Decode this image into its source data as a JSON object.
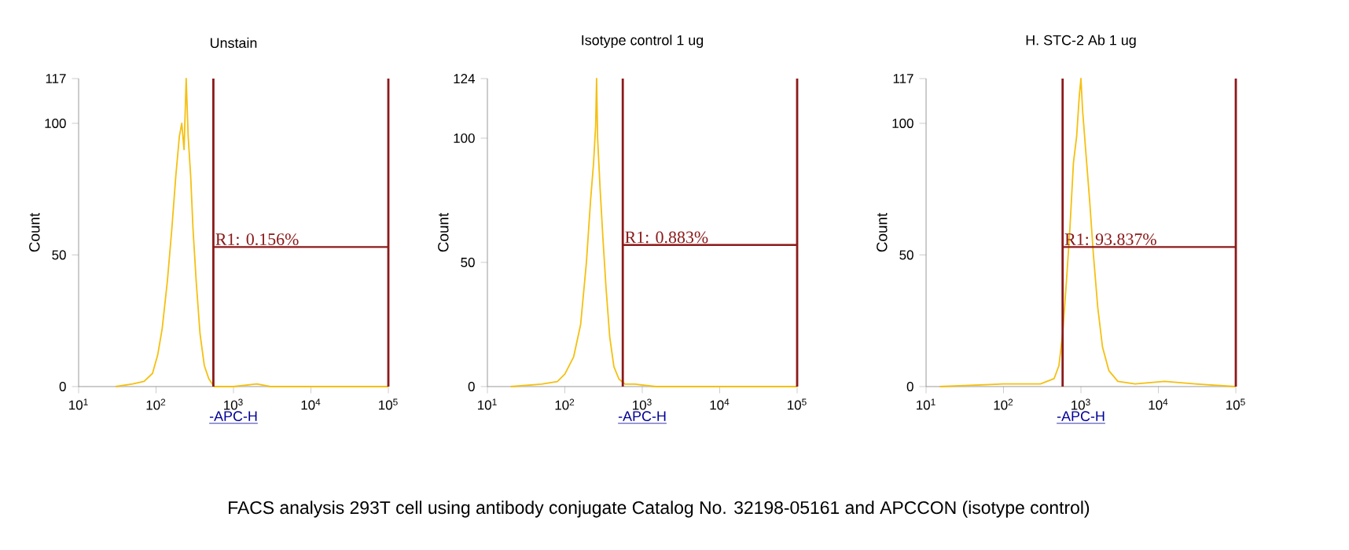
{
  "chart_data": [
    {
      "type": "line",
      "title": "Unstain",
      "xlabel": "-APC-H",
      "ylabel": "Count",
      "log": "x",
      "color": "#f5c010",
      "marker": "none",
      "grid": false,
      "x": [
        30,
        50,
        70,
        90,
        105,
        120,
        140,
        160,
        180,
        200,
        215,
        230,
        245,
        260,
        280,
        300,
        330,
        370,
        420,
        480,
        560,
        700,
        1000,
        2000,
        3000,
        10000,
        100000
      ],
      "values": [
        0,
        1,
        2,
        5,
        12,
        22,
        40,
        60,
        80,
        95,
        100,
        90,
        117,
        95,
        80,
        60,
        40,
        20,
        8,
        3,
        0,
        0,
        0,
        1,
        0,
        0,
        0
      ],
      "xlim": [
        10,
        100000
      ],
      "ylim": [
        0,
        117
      ],
      "xticks": [
        {
          "value": 10,
          "label": "10$^{1}$"
        },
        {
          "value": 100,
          "label": "10$^{2}$"
        },
        {
          "value": 1000,
          "label": "10$^{3}$"
        },
        {
          "value": 10000,
          "label": "10$^{4}$"
        },
        {
          "value": 100000,
          "label": "10$^{5}$"
        }
      ],
      "yticks": [
        0,
        50,
        100,
        117
      ],
      "ref_lines": [
        {
          "axis": "x",
          "value": 550,
          "color": "#8b1a1a"
        },
        {
          "axis": "x",
          "value": 100000,
          "color": "#8b1a1a"
        },
        {
          "axis": "y",
          "value": 53,
          "color": "#8b1a1a"
        }
      ],
      "annotations": [
        {
          "text": "R1: 0.156%",
          "x": 550,
          "y": 53
        },
        "FACS analysis 293T cell using antibody conjugate Catalog No. 32198-05161 and APCCON (isotype control)"
      ]
    },
    {
      "type": "line",
      "title": "Isotype control 1 ug",
      "xlabel": "-APC-H",
      "ylabel": "Count",
      "log": "x",
      "color": "#f5c010",
      "marker": "none",
      "grid": false,
      "x": [
        20,
        50,
        80,
        100,
        130,
        160,
        190,
        215,
        235,
        250,
        257,
        265,
        285,
        310,
        340,
        380,
        430,
        500,
        600,
        800,
        1500,
        3000,
        100000
      ],
      "values": [
        0,
        1,
        2,
        5,
        12,
        25,
        50,
        75,
        90,
        105,
        124,
        100,
        80,
        60,
        40,
        20,
        8,
        3,
        1,
        1,
        0,
        0,
        0
      ],
      "xlim": [
        10,
        100000
      ],
      "ylim": [
        0,
        124
      ],
      "xticks": [
        {
          "value": 10,
          "label": "10$^{1}$"
        },
        {
          "value": 100,
          "label": "10$^{2}$"
        },
        {
          "value": 1000,
          "label": "10$^{3}$"
        },
        {
          "value": 10000,
          "label": "10$^{4}$"
        },
        {
          "value": 100000,
          "label": "10$^{5}$"
        }
      ],
      "yticks": [
        0,
        50,
        100,
        124
      ],
      "ref_lines": [
        {
          "axis": "x",
          "value": 560,
          "color": "#8b1a1a"
        },
        {
          "axis": "x",
          "value": 100000,
          "color": "#8b1a1a"
        },
        {
          "axis": "y",
          "value": 57,
          "color": "#8b1a1a"
        }
      ],
      "annotations": [
        {
          "text": "R1: 0.883%",
          "x": 560,
          "y": 57
        }
      ]
    },
    {
      "type": "line",
      "title": "H. STC-2 Ab 1 ug",
      "xlabel": "-APC-H",
      "ylabel": "Count",
      "log": "x",
      "color": "#f5c010",
      "marker": "none",
      "grid": false,
      "x": [
        15,
        100,
        300,
        450,
        520,
        580,
        650,
        720,
        800,
        880,
        950,
        1000,
        1050,
        1150,
        1300,
        1450,
        1650,
        1900,
        2300,
        3000,
        5000,
        12000,
        30000,
        100000
      ],
      "values": [
        0,
        1,
        1,
        3,
        8,
        20,
        40,
        60,
        85,
        95,
        110,
        117,
        105,
        90,
        70,
        50,
        30,
        15,
        6,
        2,
        1,
        2,
        1,
        0
      ],
      "xlim": [
        10,
        100000
      ],
      "ylim": [
        0,
        117
      ],
      "xticks": [
        {
          "value": 10,
          "label": "10$^{1}$"
        },
        {
          "value": 100,
          "label": "10$^{2}$"
        },
        {
          "value": 1000,
          "label": "10$^{3}$"
        },
        {
          "value": 10000,
          "label": "10$^{4}$"
        },
        {
          "value": 100000,
          "label": "10$^{5}$"
        }
      ],
      "yticks": [
        0,
        50,
        100,
        117
      ],
      "ref_lines": [
        {
          "axis": "x",
          "value": 580,
          "color": "#8b1a1a"
        },
        {
          "axis": "x",
          "value": 100000,
          "color": "#8b1a1a"
        },
        {
          "axis": "y",
          "value": 53,
          "color": "#8b1a1a"
        }
      ],
      "annotations": [
        {
          "text": "R1: 93.837%",
          "x": 580,
          "y": 53
        }
      ]
    }
  ]
}
